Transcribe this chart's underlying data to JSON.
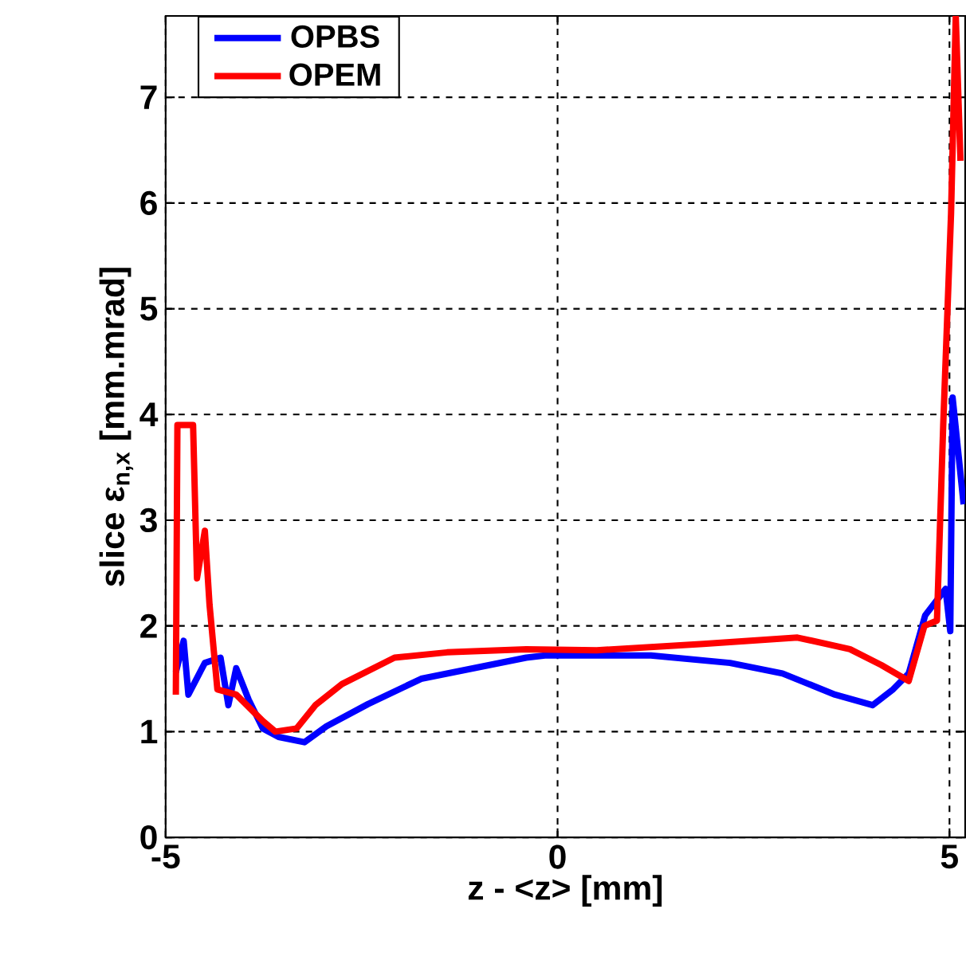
{
  "chart_data": {
    "type": "line",
    "xlabel": "z - <z> [mm]",
    "ylabel": "slice ε$_{n,x}$ [mm.mrad]",
    "xlim": [
      -5,
      5.2
    ],
    "ylim": [
      0,
      7.77
    ],
    "xticks": [
      -5,
      0,
      5
    ],
    "yticks": [
      0,
      1,
      2,
      3,
      4,
      5,
      6,
      7
    ],
    "grid": true,
    "legend": "top left",
    "marker": "none",
    "line_style": "solid",
    "series": [
      {
        "name": "OPBS",
        "color": "#0000ff",
        "x": [
          -4.87,
          -4.77,
          -4.71,
          -4.5,
          -4.3,
          -4.2,
          -4.1,
          -3.94,
          -3.76,
          -3.56,
          -3.23,
          -2.95,
          -2.42,
          -1.74,
          -1.07,
          -0.4,
          -0.16,
          1.19,
          2.2,
          2.87,
          3.54,
          4.02,
          4.28,
          4.48,
          4.69,
          4.95,
          5.01,
          5.04,
          5.18
        ],
        "values": [
          1.56,
          1.86,
          1.35,
          1.65,
          1.7,
          1.25,
          1.6,
          1.3,
          1.03,
          0.95,
          0.9,
          1.05,
          1.26,
          1.5,
          1.6,
          1.7,
          1.72,
          1.72,
          1.65,
          1.55,
          1.35,
          1.25,
          1.4,
          1.55,
          2.1,
          2.35,
          1.95,
          4.16,
          3.15
        ]
      },
      {
        "name": "OPEM",
        "color": "#ff0000",
        "x": [
          -4.87,
          -4.85,
          -4.65,
          -4.6,
          -4.5,
          -4.44,
          -4.34,
          -4.1,
          -3.76,
          -3.6,
          -3.33,
          -3.09,
          -2.75,
          -2.08,
          -1.41,
          -0.4,
          0.5,
          1.86,
          3.06,
          3.73,
          4.13,
          4.48,
          4.68,
          4.84,
          4.92,
          5.02,
          5.08,
          5.14
        ],
        "values": [
          1.35,
          3.9,
          3.9,
          2.45,
          2.9,
          2.2,
          1.4,
          1.35,
          1.1,
          1.0,
          1.03,
          1.25,
          1.45,
          1.7,
          1.75,
          1.78,
          1.77,
          1.83,
          1.89,
          1.78,
          1.63,
          1.48,
          2.0,
          2.05,
          3.9,
          5.9,
          7.77,
          6.4
        ]
      }
    ]
  }
}
